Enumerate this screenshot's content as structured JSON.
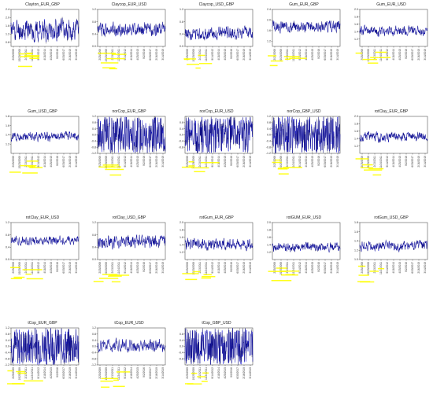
{
  "colors": {
    "line": "#0b0bd8",
    "overlay": "#0a0a14",
    "frame": "#333333",
    "highlight": "#ffff00",
    "paper": "#ffffff"
  },
  "chart_data": [
    {
      "type": "line",
      "title": "Clayton_EUR_GBP",
      "ylim": [
        0.6,
        2.4
      ],
      "yticks": [
        0.8,
        1.2,
        1.6,
        2.0,
        2.4
      ],
      "mean": 1.4,
      "spread": 0.55,
      "seed": 11
    },
    {
      "type": "line",
      "title": "Claycop_EUR_USD",
      "ylim": [
        0.0,
        1.2
      ],
      "yticks": [
        0.0,
        0.4,
        0.8,
        1.2
      ],
      "mean": 0.55,
      "spread": 0.22,
      "seed": 12
    },
    {
      "type": "line",
      "title": "Claycop_USD_GBP",
      "ylim": [
        0.0,
        1.2
      ],
      "yticks": [
        0.0,
        0.4,
        0.8,
        1.2
      ],
      "mean": 0.42,
      "spread": 0.2,
      "seed": 13
    },
    {
      "type": "line",
      "title": "Gum_EUR_GBP",
      "ylim": [
        1.0,
        2.4
      ],
      "yticks": [
        1.2,
        1.6,
        2.0,
        2.4
      ],
      "mean": 1.75,
      "spread": 0.22,
      "seed": 14
    },
    {
      "type": "line",
      "title": "Gum_EUR_USD",
      "ylim": [
        1.0,
        2.0
      ],
      "yticks": [
        1.2,
        1.4,
        1.6,
        1.8,
        2.0
      ],
      "mean": 1.42,
      "spread": 0.13,
      "seed": 15
    },
    {
      "type": "line",
      "title": "Gum_USD_GBP",
      "ylim": [
        1.0,
        1.8
      ],
      "yticks": [
        1.2,
        1.4,
        1.6,
        1.8
      ],
      "mean": 1.36,
      "spread": 0.1,
      "seed": 16
    },
    {
      "type": "line",
      "title": "norCop_EUR_GBP",
      "ylim": [
        -1.2,
        1.2
      ],
      "yticks": [
        -1.2,
        -0.8,
        -0.4,
        0.0,
        0.4,
        0.8,
        1.2
      ],
      "mean": 0.0,
      "spread": 1.2,
      "seed": 17
    },
    {
      "type": "line",
      "title": "norCop_EUR_USD",
      "ylim": [
        -1.2,
        1.2
      ],
      "yticks": [
        -0.8,
        -0.4,
        0.0,
        0.4,
        0.8
      ],
      "mean": 0.0,
      "spread": 1.2,
      "seed": 18
    },
    {
      "type": "line",
      "title": "norCop_GBP_USD",
      "ylim": [
        -1.2,
        1.2
      ],
      "yticks": [
        -1.2,
        -0.8,
        -0.4,
        0.0,
        0.4,
        0.8,
        1.2
      ],
      "mean": 0.0,
      "spread": 1.2,
      "seed": 19
    },
    {
      "type": "line",
      "title": "rotClay_EUR_GBP",
      "ylim": [
        1.0,
        2.0
      ],
      "yticks": [
        1.2,
        1.4,
        1.6,
        1.8,
        2.0
      ],
      "mean": 1.45,
      "spread": 0.13,
      "seed": 20
    },
    {
      "type": "line",
      "title": "rotClay_EUR_USD",
      "ylim": [
        0.0,
        1.2
      ],
      "yticks": [
        0.0,
        0.4,
        0.8,
        1.2
      ],
      "mean": 0.62,
      "spread": 0.14,
      "seed": 21
    },
    {
      "type": "line",
      "title": "rotClay_USD_GBP",
      "ylim": [
        0.0,
        1.2
      ],
      "yticks": [
        0.0,
        0.4,
        0.8,
        1.2
      ],
      "mean": 0.58,
      "spread": 0.22,
      "seed": 22
    },
    {
      "type": "line",
      "title": "rotGum_EUR_GBP",
      "ylim": [
        1.0,
        2.0
      ],
      "yticks": [
        1.2,
        1.4,
        1.6,
        1.8,
        2.0
      ],
      "mean": 1.42,
      "spread": 0.16,
      "seed": 23
    },
    {
      "type": "line",
      "title": "rotGUM_EUR_USD",
      "ylim": [
        1.0,
        2.0
      ],
      "yticks": [
        1.2,
        1.4,
        1.6,
        1.8,
        2.0
      ],
      "mean": 1.33,
      "spread": 0.12,
      "seed": 24
    },
    {
      "type": "line",
      "title": "rotGum_USD_GBP",
      "ylim": [
        1.0,
        1.8
      ],
      "yticks": [
        1.0,
        1.2,
        1.4,
        1.6,
        1.8
      ],
      "mean": 1.3,
      "spread": 0.11,
      "seed": 25
    },
    {
      "type": "line",
      "title": "tCop_EUR_GBP",
      "ylim": [
        -1.2,
        1.2
      ],
      "yticks": [
        -1.2,
        -0.8,
        -0.4,
        0.0,
        0.4,
        0.8,
        1.2
      ],
      "mean": 0.0,
      "spread": 1.2,
      "seed": 26
    },
    {
      "type": "line",
      "title": "tCop_EUR_USD",
      "ylim": [
        -1.2,
        1.2
      ],
      "yticks": [
        -1.2,
        -0.8,
        -0.4,
        0.0,
        0.4,
        0.8,
        1.2
      ],
      "mean": 0.05,
      "spread": 0.4,
      "seed": 27
    },
    {
      "type": "line",
      "title": "tCop_GBP_USD",
      "ylim": [
        -1.2,
        1.2
      ],
      "yticks": [
        -0.8,
        -0.4,
        0.0,
        0.4,
        0.8
      ],
      "mean": 0.0,
      "spread": 1.2,
      "seed": 28
    }
  ],
  "x_tick_labels": [
    "2/25/2009",
    "10/20/2009",
    "2/13/2011",
    "11/24/2011",
    "9/14/2012",
    "4/18/2014",
    "4/25/2015",
    "9/2/2016",
    "6/30/2017",
    "2/16/2019",
    "3/14/2019"
  ]
}
